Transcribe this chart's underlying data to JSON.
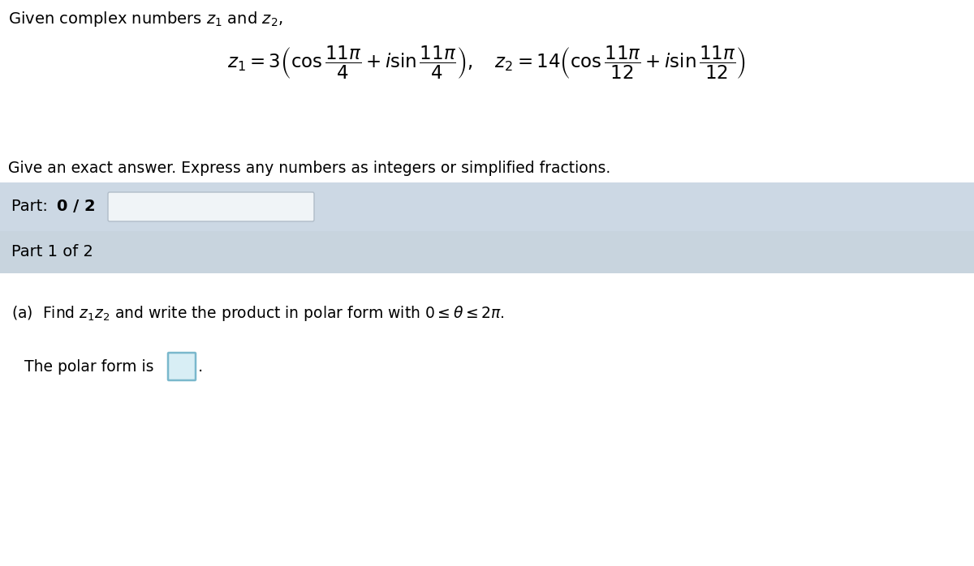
{
  "bg_color": "#ffffff",
  "panel1_color": "#ccd8e4",
  "panel2_color": "#c8d4de",
  "text_color": "#000000",
  "input_box_color_border": "#7ab8cc",
  "input_box_color_fill": "#d8eef5",
  "input_white_fill": "#f5f8fa",
  "title_text": "Given complex numbers $z_1$ and $z_2,$",
  "formula": "$z_1=3\\left( \\cos\\dfrac{11\\pi}{4}+i\\sin\\dfrac{11\\pi}{4} \\right), \\quad z_2=14\\left( \\cos\\dfrac{11\\pi}{12}+i\\sin\\dfrac{11\\pi}{12} \\right)$",
  "instruction": "Give an exact answer. Express any numbers as integers or simplified fractions.",
  "part_a_text": "(a)  Find $z_1z_2$ and write the product in polar form with $0\\leq\\theta\\leq 2\\pi$.",
  "polar_text": "The polar form is",
  "figsize": [
    12.0,
    6.98
  ],
  "dpi": 100
}
